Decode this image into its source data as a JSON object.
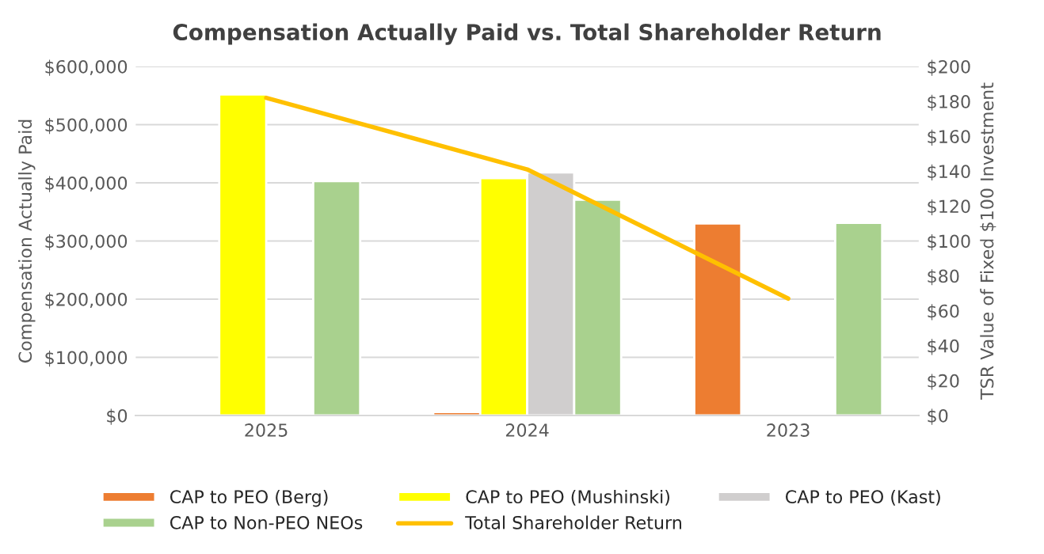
{
  "chart_data": {
    "type": "bar",
    "title": "Compensation Actually Paid vs. Total Shareholder Return",
    "ylabel": "Compensation Actually Paid",
    "y2label": "TSR Value of Fixed $100 Investment",
    "categories": [
      "2025",
      "2024",
      "2023"
    ],
    "series": [
      {
        "name": "CAP to PEO (Berg)",
        "color": "#ed7d31",
        "values": [
          null,
          6000,
          330000
        ]
      },
      {
        "name": "CAP to PEO (Mushinski)",
        "color": "#ffff00",
        "values": [
          552000,
          408000,
          null
        ]
      },
      {
        "name": "CAP to PEO (Kast)",
        "color": "#d0cece",
        "values": [
          null,
          418000,
          null
        ]
      },
      {
        "name": "CAP to Non-PEO NEOs",
        "color": "#a9d18e",
        "values": [
          403000,
          371000,
          331000
        ]
      },
      {
        "name": "Total Shareholder Return",
        "type": "line",
        "axis": "y2",
        "color": "#ffc000",
        "values": [
          182,
          141,
          67
        ]
      }
    ],
    "ylim": [
      0,
      600000
    ],
    "yticks": [
      {
        "value": 0,
        "label": "$0"
      },
      {
        "value": 100000,
        "label": "$100,000"
      },
      {
        "value": 200000,
        "label": "$200,000"
      },
      {
        "value": 300000,
        "label": "$300,000"
      },
      {
        "value": 400000,
        "label": "$400,000"
      },
      {
        "value": 500000,
        "label": "$500,000"
      },
      {
        "value": 600000,
        "label": "$600,000"
      }
    ],
    "y2lim": [
      0,
      200
    ],
    "y2ticks": [
      {
        "value": 0,
        "label": "$0"
      },
      {
        "value": 20,
        "label": "$20"
      },
      {
        "value": 40,
        "label": "$40"
      },
      {
        "value": 60,
        "label": "$60"
      },
      {
        "value": 80,
        "label": "$80"
      },
      {
        "value": 100,
        "label": "$100"
      },
      {
        "value": 120,
        "label": "$120"
      },
      {
        "value": 140,
        "label": "$140"
      },
      {
        "value": 160,
        "label": "$160"
      },
      {
        "value": 180,
        "label": "$180"
      },
      {
        "value": 200,
        "label": "$200"
      }
    ],
    "grid": "y",
    "legend": "bottom"
  }
}
